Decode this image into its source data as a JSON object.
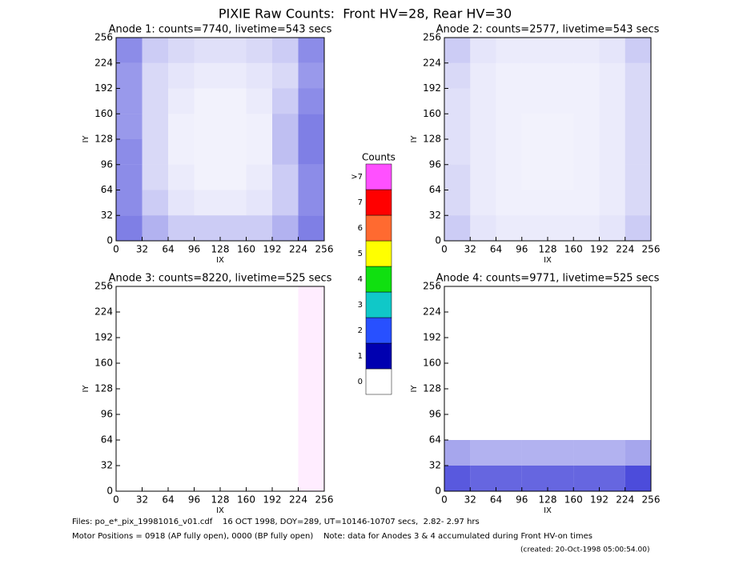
{
  "title": "PIXIE Raw Counts:  Front HV=28, Rear HV=30",
  "chart_data": [
    {
      "type": "heatmap",
      "title": "Anode 1: counts=7740, livetime=543 secs",
      "xlabel": "IX",
      "ylabel": "IY",
      "xlim": [
        0,
        256
      ],
      "ylim": [
        0,
        256
      ],
      "xticks": [
        0,
        32,
        64,
        96,
        128,
        160,
        192,
        224,
        256
      ],
      "yticks": [
        0,
        32,
        64,
        96,
        128,
        160,
        192,
        224,
        256
      ],
      "color": "#0000cc",
      "density": [
        [
          0.5,
          0.3,
          0.2,
          0.2,
          0.2,
          0.2,
          0.3,
          0.5
        ],
        [
          0.45,
          0.2,
          0.1,
          0.08,
          0.08,
          0.1,
          0.2,
          0.45
        ],
        [
          0.45,
          0.15,
          0.08,
          0.05,
          0.05,
          0.08,
          0.2,
          0.45
        ],
        [
          0.45,
          0.15,
          0.06,
          0.05,
          0.05,
          0.06,
          0.25,
          0.5
        ],
        [
          0.4,
          0.15,
          0.06,
          0.05,
          0.05,
          0.06,
          0.25,
          0.5
        ],
        [
          0.4,
          0.15,
          0.08,
          0.05,
          0.05,
          0.08,
          0.2,
          0.45
        ],
        [
          0.4,
          0.15,
          0.1,
          0.08,
          0.08,
          0.1,
          0.15,
          0.4
        ],
        [
          0.45,
          0.2,
          0.15,
          0.12,
          0.12,
          0.15,
          0.2,
          0.45
        ]
      ]
    },
    {
      "type": "heatmap",
      "title": "Anode 2: counts=2577, livetime=543 secs",
      "xlabel": "IX",
      "ylabel": "IY",
      "xlim": [
        0,
        256
      ],
      "ylim": [
        0,
        256
      ],
      "xticks": [
        0,
        32,
        64,
        96,
        128,
        160,
        192,
        224,
        256
      ],
      "yticks": [
        0,
        32,
        64,
        96,
        128,
        160,
        192,
        224,
        256
      ],
      "color": "#0000cc",
      "density": [
        [
          0.2,
          0.1,
          0.08,
          0.08,
          0.08,
          0.08,
          0.1,
          0.2
        ],
        [
          0.15,
          0.08,
          0.06,
          0.06,
          0.06,
          0.06,
          0.08,
          0.15
        ],
        [
          0.15,
          0.08,
          0.06,
          0.05,
          0.05,
          0.06,
          0.08,
          0.15
        ],
        [
          0.12,
          0.08,
          0.06,
          0.05,
          0.05,
          0.06,
          0.08,
          0.15
        ],
        [
          0.12,
          0.08,
          0.06,
          0.05,
          0.05,
          0.06,
          0.08,
          0.15
        ],
        [
          0.12,
          0.08,
          0.06,
          0.06,
          0.06,
          0.06,
          0.08,
          0.15
        ],
        [
          0.15,
          0.08,
          0.06,
          0.06,
          0.06,
          0.06,
          0.08,
          0.15
        ],
        [
          0.2,
          0.1,
          0.08,
          0.08,
          0.08,
          0.08,
          0.1,
          0.2
        ]
      ]
    },
    {
      "type": "heatmap",
      "title": "Anode 3: counts=8220, livetime=525 secs",
      "xlabel": "IX",
      "ylabel": "IY",
      "xlim": [
        0,
        256
      ],
      "ylim": [
        0,
        256
      ],
      "xticks": [
        0,
        32,
        64,
        96,
        128,
        160,
        192,
        224,
        256
      ],
      "yticks": [
        0,
        32,
        64,
        96,
        128,
        160,
        192,
        224,
        256
      ],
      "color": "#ff50ff",
      "density": [
        [
          0,
          0,
          0,
          0,
          0,
          0,
          0,
          0.1
        ],
        [
          0,
          0,
          0,
          0,
          0,
          0,
          0,
          0.1
        ],
        [
          0,
          0,
          0,
          0,
          0,
          0,
          0,
          0.1
        ],
        [
          0,
          0,
          0,
          0,
          0,
          0,
          0,
          0.1
        ],
        [
          0,
          0,
          0,
          0,
          0,
          0,
          0,
          0.1
        ],
        [
          0,
          0,
          0,
          0,
          0,
          0,
          0,
          0.1
        ],
        [
          0,
          0,
          0,
          0,
          0,
          0,
          0,
          0.1
        ],
        [
          0,
          0,
          0,
          0,
          0,
          0,
          0,
          0.1
        ]
      ]
    },
    {
      "type": "heatmap",
      "title": "Anode 4: counts=9771, livetime=525 secs",
      "xlabel": "IX",
      "ylabel": "IY",
      "xlim": [
        0,
        256
      ],
      "ylim": [
        0,
        256
      ],
      "xticks": [
        0,
        32,
        64,
        96,
        128,
        160,
        192,
        224,
        256
      ],
      "yticks": [
        0,
        32,
        64,
        96,
        128,
        160,
        192,
        224,
        256
      ],
      "color": "#0000cc",
      "density": [
        [
          0.65,
          0.6,
          0.6,
          0.6,
          0.6,
          0.6,
          0.6,
          0.7
        ],
        [
          0.35,
          0.3,
          0.3,
          0.3,
          0.3,
          0.3,
          0.3,
          0.35
        ],
        [
          0,
          0,
          0,
          0,
          0,
          0,
          0,
          0
        ],
        [
          0,
          0,
          0,
          0,
          0,
          0,
          0,
          0
        ],
        [
          0,
          0,
          0,
          0,
          0,
          0,
          0,
          0
        ],
        [
          0,
          0,
          0,
          0,
          0,
          0,
          0,
          0
        ],
        [
          0,
          0,
          0,
          0,
          0,
          0,
          0,
          0
        ],
        [
          0,
          0,
          0,
          0,
          0,
          0,
          0,
          0
        ]
      ]
    }
  ],
  "colorbar": {
    "title": "Counts",
    "labels": [
      "0",
      "1",
      "2",
      "3",
      "4",
      "5",
      "6",
      "7",
      ">7"
    ],
    "colors": [
      "#ffffff",
      "#0000b0",
      "#2850ff",
      "#10c8c8",
      "#10e010",
      "#ffff00",
      "#ff6a30",
      "#ff0000",
      "#ff50ff"
    ]
  },
  "footer": {
    "files": "Files: po_e*_pix_19981016_v01.cdf    16 OCT 1998, DOY=289, UT=10146-10707 secs,  2.82- 2.97 hrs",
    "motor": "Motor Positions = 0918 (AP fully open), 0000 (BP fully open)    Note: data for Anodes 3 & 4 accumulated during Front HV-on times",
    "created": "(created: 20-Oct-1998 05:00:54.00)"
  }
}
